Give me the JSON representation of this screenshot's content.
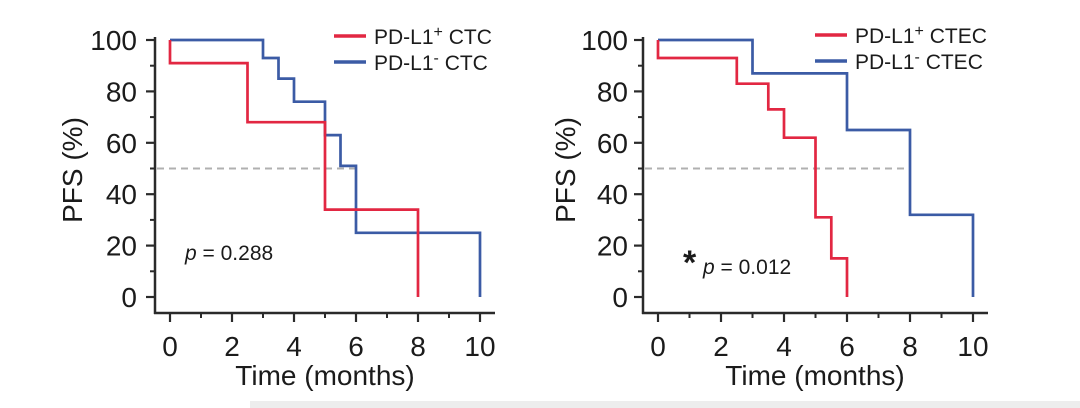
{
  "figure": {
    "background": "#ffffff",
    "text_color": "#1b1b1b",
    "axis_color": "#2a2a2a",
    "accent_red": "#e22742",
    "accent_blue": "#3b5ba5",
    "dashed_line_color": "#b0b0b0"
  },
  "chart_data": [
    {
      "type": "line",
      "subtype": "kaplan_meier_step",
      "panel": "CTC",
      "xlabel": "Time (months)",
      "ylabel": "PFS (%)",
      "xlim": [
        0,
        10
      ],
      "ylim": [
        0,
        100
      ],
      "xticks": [
        0,
        2,
        4,
        6,
        8,
        10
      ],
      "yticks": [
        0,
        20,
        40,
        60,
        80,
        100
      ],
      "minor_xticks": [
        1,
        3,
        5,
        7,
        9
      ],
      "minor_yticks": [
        10,
        30,
        50,
        70,
        90
      ],
      "grid": false,
      "legend_position": "top-right",
      "median_reference_line": {
        "y": 50,
        "style": "dashed",
        "color": "#b0b0b0",
        "x_end": 6.15
      },
      "p_value": {
        "star": "",
        "symbol": "p",
        "rest": " = 0.288"
      },
      "series": [
        {
          "id": "pdl1-pos-ctc",
          "name": "PD-L1+ CTC",
          "legend": {
            "prefix": "PD-L1",
            "sup": "+",
            "suffix": " CTC"
          },
          "color": "#e22742",
          "points": [
            [
              0,
              100
            ],
            [
              0,
              91
            ],
            [
              2.5,
              91
            ],
            [
              2.5,
              68
            ],
            [
              5,
              68
            ],
            [
              5,
              34
            ],
            [
              8,
              34
            ],
            [
              8,
              0
            ]
          ]
        },
        {
          "id": "pdl1-neg-ctc",
          "name": "PD-L1- CTC",
          "legend": {
            "prefix": "PD-L1",
            "sup": "-",
            "suffix": " CTC"
          },
          "color": "#3b5ba5",
          "points": [
            [
              0,
              100
            ],
            [
              3,
              100
            ],
            [
              3,
              93
            ],
            [
              3.5,
              93
            ],
            [
              3.5,
              85
            ],
            [
              4,
              85
            ],
            [
              4,
              76
            ],
            [
              5,
              76
            ],
            [
              5,
              63
            ],
            [
              5.5,
              63
            ],
            [
              5.5,
              51
            ],
            [
              6,
              51
            ],
            [
              6,
              25
            ],
            [
              10,
              25
            ],
            [
              10,
              0
            ]
          ]
        }
      ]
    },
    {
      "type": "line",
      "subtype": "kaplan_meier_step",
      "panel": "CTEC",
      "xlabel": "Time (months)",
      "ylabel": "PFS (%)",
      "xlim": [
        0,
        10
      ],
      "ylim": [
        0,
        100
      ],
      "xticks": [
        0,
        2,
        4,
        6,
        8,
        10
      ],
      "yticks": [
        0,
        20,
        40,
        60,
        80,
        100
      ],
      "minor_xticks": [
        1,
        3,
        5,
        7,
        9
      ],
      "minor_yticks": [
        10,
        30,
        50,
        70,
        90
      ],
      "grid": false,
      "legend_position": "top-right",
      "median_reference_line": {
        "y": 50,
        "style": "dashed",
        "color": "#b0b0b0",
        "x_end": 7.9
      },
      "p_value": {
        "star": "*",
        "symbol": "p",
        "rest": " = 0.012"
      },
      "series": [
        {
          "id": "pdl1-pos-ctec",
          "name": "PD-L1+ CTEC",
          "legend": {
            "prefix": "PD-L1",
            "sup": "+",
            "suffix": " CTEC"
          },
          "color": "#e22742",
          "points": [
            [
              0,
              100
            ],
            [
              0,
              93
            ],
            [
              2.5,
              93
            ],
            [
              2.5,
              83
            ],
            [
              3.5,
              83
            ],
            [
              3.5,
              73
            ],
            [
              4,
              73
            ],
            [
              4,
              62
            ],
            [
              5,
              62
            ],
            [
              5,
              31
            ],
            [
              5.5,
              31
            ],
            [
              5.5,
              15
            ],
            [
              6,
              15
            ],
            [
              6,
              0
            ]
          ]
        },
        {
          "id": "pdl1-neg-ctec",
          "name": "PD-L1- CTEC",
          "legend": {
            "prefix": "PD-L1",
            "sup": "-",
            "suffix": " CTEC"
          },
          "color": "#3b5ba5",
          "points": [
            [
              0,
              100
            ],
            [
              3,
              100
            ],
            [
              3,
              87
            ],
            [
              6,
              87
            ],
            [
              6,
              65
            ],
            [
              8,
              65
            ],
            [
              8,
              32
            ],
            [
              10,
              32
            ],
            [
              10,
              0
            ]
          ]
        }
      ]
    }
  ]
}
